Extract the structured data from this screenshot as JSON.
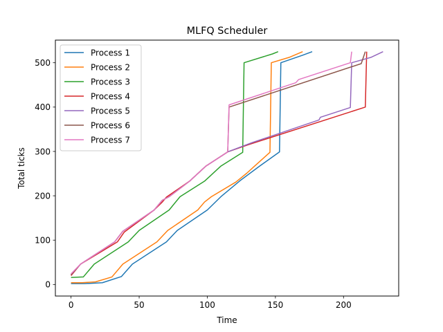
{
  "chart_data": {
    "type": "line",
    "title": "MLFQ Scheduler",
    "xlabel": "Time",
    "ylabel": "Total ticks",
    "xlim": [
      -11.5,
      240.5
    ],
    "ylim": [
      -26,
      551
    ],
    "xticks": [
      0,
      50,
      100,
      150,
      200
    ],
    "yticks": [
      0,
      100,
      200,
      300,
      400,
      500
    ],
    "grid": false,
    "legend_position": "top-left",
    "series": [
      {
        "name": "Process 1",
        "color": "#1f77b4",
        "points": [
          [
            0,
            2
          ],
          [
            10,
            2
          ],
          [
            23,
            4
          ],
          [
            37,
            18
          ],
          [
            45,
            46
          ],
          [
            70,
            96
          ],
          [
            78,
            122
          ],
          [
            100,
            168
          ],
          [
            110,
            198
          ],
          [
            124,
            234
          ],
          [
            138,
            266
          ],
          [
            153,
            299
          ],
          [
            154,
            500
          ],
          [
            170,
            517
          ],
          [
            177,
            525
          ]
        ]
      },
      {
        "name": "Process 2",
        "color": "#ff7f0e",
        "points": [
          [
            0,
            4
          ],
          [
            8,
            4
          ],
          [
            18,
            6
          ],
          [
            30,
            17
          ],
          [
            38,
            46
          ],
          [
            63,
            96
          ],
          [
            71,
            122
          ],
          [
            93,
            168
          ],
          [
            98,
            186
          ],
          [
            103,
            198
          ],
          [
            121,
            231
          ],
          [
            129,
            251
          ],
          [
            134,
            265
          ],
          [
            146,
            298
          ],
          [
            147,
            500
          ],
          [
            160,
            512
          ],
          [
            170,
            525
          ]
        ]
      },
      {
        "name": "Process 3",
        "color": "#2ca02c",
        "points": [
          [
            0,
            16
          ],
          [
            9,
            17
          ],
          [
            17,
            46
          ],
          [
            42,
            96
          ],
          [
            50,
            122
          ],
          [
            72,
            168
          ],
          [
            80,
            198
          ],
          [
            98,
            233
          ],
          [
            110,
            267
          ],
          [
            126,
            298
          ],
          [
            127,
            500
          ],
          [
            148,
            520
          ],
          [
            152,
            525
          ]
        ]
      },
      {
        "name": "Process 4",
        "color": "#d62728",
        "points": [
          [
            0,
            20
          ],
          [
            7,
            46
          ],
          [
            34,
            96
          ],
          [
            39,
            118
          ],
          [
            61,
            168
          ],
          [
            67,
            186
          ],
          [
            70,
            197
          ],
          [
            87,
            233
          ],
          [
            99,
            267
          ],
          [
            115,
            299
          ],
          [
            130,
            315
          ],
          [
            216,
            400
          ],
          [
            217,
            525
          ]
        ]
      },
      {
        "name": "Process 5",
        "color": "#9467bd",
        "points": [
          [
            0,
            22
          ],
          [
            7,
            46
          ],
          [
            32,
            96
          ],
          [
            38,
            120
          ],
          [
            61,
            168
          ],
          [
            67,
            190
          ],
          [
            72,
            198
          ],
          [
            87,
            233
          ],
          [
            99,
            267
          ],
          [
            115,
            299
          ],
          [
            133,
            320
          ],
          [
            182,
            371
          ],
          [
            183,
            377
          ],
          [
            205,
            399
          ],
          [
            206,
            500
          ],
          [
            220,
            512
          ],
          [
            229,
            525
          ]
        ]
      },
      {
        "name": "Process 6",
        "color": "#8c564b",
        "points": [
          [
            0,
            22
          ],
          [
            7,
            46
          ],
          [
            32,
            96
          ],
          [
            38,
            120
          ],
          [
            61,
            168
          ],
          [
            67,
            190
          ],
          [
            72,
            198
          ],
          [
            87,
            233
          ],
          [
            99,
            267
          ],
          [
            115,
            299
          ],
          [
            116,
            400
          ],
          [
            213,
            498
          ],
          [
            216,
            525
          ]
        ]
      },
      {
        "name": "Process 7",
        "color": "#e377c2",
        "points": [
          [
            0,
            24
          ],
          [
            7,
            46
          ],
          [
            32,
            96
          ],
          [
            38,
            120
          ],
          [
            61,
            168
          ],
          [
            67,
            190
          ],
          [
            72,
            198
          ],
          [
            87,
            233
          ],
          [
            99,
            267
          ],
          [
            115,
            299
          ],
          [
            116,
            405
          ],
          [
            165,
            455
          ],
          [
            167,
            462
          ],
          [
            205,
            500
          ],
          [
            206,
            525
          ]
        ]
      }
    ]
  }
}
